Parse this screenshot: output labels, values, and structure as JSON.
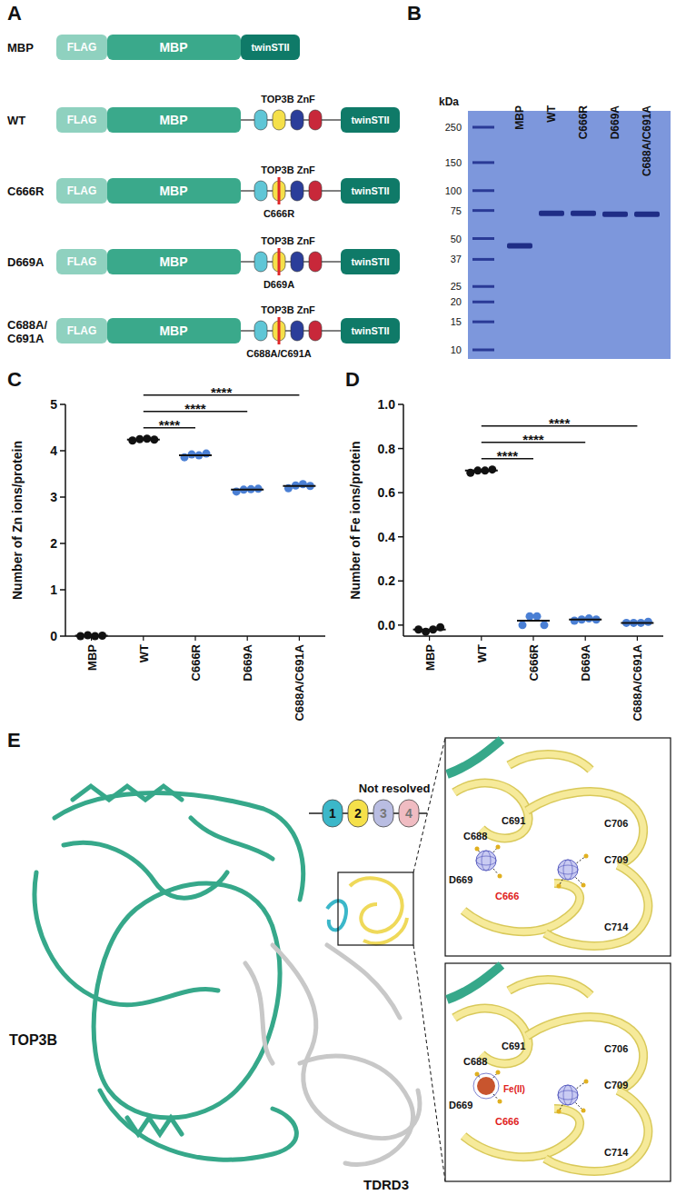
{
  "panel_a": {
    "letter": "A",
    "rows": [
      {
        "label": "MBP",
        "tag": "FLAG",
        "body": "MBP",
        "strep": "twinSTII"
      },
      {
        "label": "WT",
        "tag": "FLAG",
        "body": "MBP",
        "znf": "TOP3B ZnF",
        "strep": "twinSTII"
      },
      {
        "label": "C666R",
        "tag": "FLAG",
        "body": "MBP",
        "znf": "TOP3B ZnF",
        "strep": "twinSTII",
        "mutation": "C666R"
      },
      {
        "label": "D669A",
        "tag": "FLAG",
        "body": "MBP",
        "znf": "TOP3B ZnF",
        "strep": "twinSTII",
        "mutation": "D669A"
      },
      {
        "label": "C688A/C691A",
        "tag": "FLAG",
        "body": "MBP",
        "znf": "TOP3B ZnF",
        "strep": "twinSTII",
        "mutation": "C688A/C691A"
      }
    ]
  },
  "panel_b": {
    "letter": "B",
    "unit": "kDa",
    "ladder": [
      250,
      150,
      100,
      75,
      50,
      37,
      25,
      20,
      15,
      10
    ],
    "lanes": [
      {
        "label": "MBP",
        "band_kda": 45
      },
      {
        "label": "WT",
        "band_kda": 72
      },
      {
        "label": "C666R",
        "band_kda": 72
      },
      {
        "label": "D669A",
        "band_kda": 71
      },
      {
        "label": "C688A/C691A",
        "band_kda": 71
      }
    ]
  },
  "chart_data": [
    {
      "panel": "C",
      "type": "scatter",
      "y_label": "Number of Zn ions/protein",
      "categories": [
        "MBP",
        "WT",
        "C666R",
        "D669A",
        "C688A/C691A"
      ],
      "points": [
        [
          0.0,
          0.02,
          0.0,
          0.01
        ],
        [
          4.22,
          4.25,
          4.26,
          4.24
        ],
        [
          3.86,
          3.92,
          3.9,
          3.94
        ],
        [
          3.12,
          3.16,
          3.17,
          3.18
        ],
        [
          3.19,
          3.25,
          3.28,
          3.24
        ]
      ],
      "means": [
        0.01,
        4.24,
        3.9,
        3.16,
        3.24
      ],
      "colors": [
        "#111111",
        "#111111",
        "#4a7fd4",
        "#4a7fd4",
        "#4a7fd4"
      ],
      "ylim": [
        0,
        5
      ],
      "yticks": [
        0,
        1,
        2,
        3,
        4,
        5
      ],
      "annotations": [
        {
          "from": "WT",
          "to": "C666R",
          "label": "****"
        },
        {
          "from": "WT",
          "to": "D669A",
          "label": "****"
        },
        {
          "from": "WT",
          "to": "C688A/C691A",
          "label": "****"
        }
      ]
    },
    {
      "panel": "D",
      "type": "scatter",
      "y_label": "Number of Fe ions/protein",
      "categories": [
        "MBP",
        "WT",
        "C666R",
        "D669A",
        "C688A/C691A"
      ],
      "points": [
        [
          -0.02,
          -0.03,
          -0.02,
          -0.01
        ],
        [
          0.69,
          0.7,
          0.7,
          0.705
        ],
        [
          0.0,
          0.04,
          0.04,
          0.0
        ],
        [
          0.02,
          0.025,
          0.03,
          0.025
        ],
        [
          0.01,
          0.01,
          0.01,
          0.015
        ]
      ],
      "means": [
        -0.02,
        0.7,
        0.02,
        0.025,
        0.01
      ],
      "colors": [
        "#111111",
        "#111111",
        "#4a7fd4",
        "#4a7fd4",
        "#4a7fd4"
      ],
      "ylim": [
        -0.05,
        1.0
      ],
      "yticks": [
        {
          "value": 0,
          "label": "0.0"
        },
        0.2,
        0.4,
        0.6,
        0.8,
        {
          "value": 1,
          "label": "1.0"
        }
      ],
      "annotations": [
        {
          "from": "WT",
          "to": "C666R",
          "label": "****"
        },
        {
          "from": "WT",
          "to": "D669A",
          "label": "****"
        },
        {
          "from": "WT",
          "to": "C688A/C691A",
          "label": "****"
        }
      ]
    }
  ],
  "panel_e": {
    "letter": "E",
    "top3b": "TOP3B",
    "tdrd3": "TDRD3",
    "not_resolved": "Not resolved",
    "domains": [
      "1",
      "2",
      "3",
      "4"
    ],
    "residues": [
      "C691",
      "C688",
      "D669",
      "C666",
      "C706",
      "C709",
      "C714"
    ],
    "highlight": "C666",
    "metal": "Fe(II)"
  }
}
